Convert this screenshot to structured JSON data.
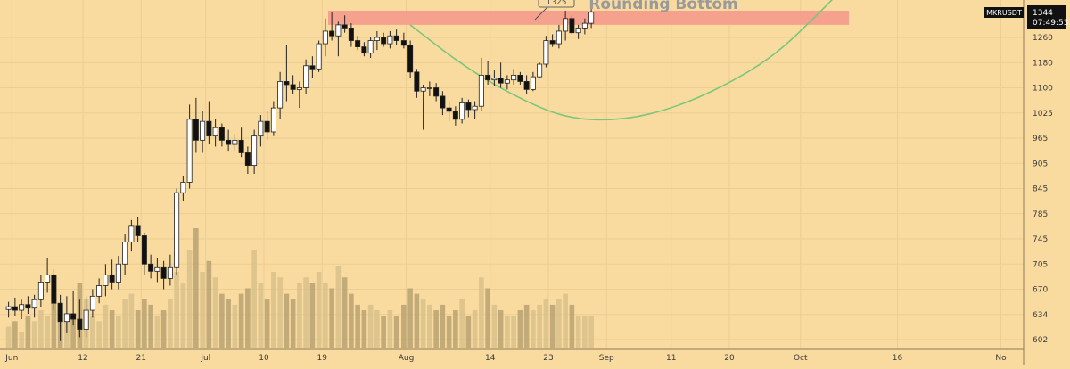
{
  "chart_data": {
    "type": "candlestick",
    "symbol": "MKRUSDT",
    "last_price": "1344",
    "countdown": "07:49:53",
    "annotation_title": "Rounding Bottom",
    "annotation_callout": "1325",
    "resistance_zone": [
      1300,
      1345
    ],
    "y_ticks": [
      602,
      634,
      670,
      705,
      745,
      785,
      845,
      905,
      965,
      1025,
      1100,
      1180,
      1260
    ],
    "x_ticks": [
      {
        "label": "Jun",
        "day": 1
      },
      {
        "label": "12",
        "day": 12
      },
      {
        "label": "21",
        "day": 21
      },
      {
        "label": "Jul",
        "day": 31
      },
      {
        "label": "10",
        "day": 40
      },
      {
        "label": "19",
        "day": 49
      },
      {
        "label": "Aug",
        "day": 62
      },
      {
        "label": "14",
        "day": 75
      },
      {
        "label": "23",
        "day": 84
      },
      {
        "label": "Sep",
        "day": 93
      },
      {
        "label": "11",
        "day": 103
      },
      {
        "label": "20",
        "day": 112
      },
      {
        "label": "Oct",
        "day": 123
      },
      {
        "label": "16",
        "day": 138
      },
      {
        "label": "No",
        "day": 154
      }
    ],
    "candles": [
      [
        641,
        652,
        630,
        645,
        4
      ],
      [
        645,
        658,
        632,
        640,
        5
      ],
      [
        640,
        655,
        628,
        648,
        3
      ],
      [
        648,
        660,
        635,
        643,
        6
      ],
      [
        643,
        662,
        630,
        655,
        5
      ],
      [
        655,
        690,
        645,
        680,
        7
      ],
      [
        680,
        715,
        665,
        690,
        6
      ],
      [
        690,
        698,
        640,
        650,
        10
      ],
      [
        650,
        662,
        600,
        625,
        8
      ],
      [
        625,
        660,
        610,
        635,
        5
      ],
      [
        635,
        668,
        620,
        628,
        6
      ],
      [
        628,
        655,
        605,
        615,
        12
      ],
      [
        615,
        660,
        605,
        640,
        9
      ],
      [
        640,
        670,
        630,
        660,
        6
      ],
      [
        660,
        685,
        650,
        675,
        5
      ],
      [
        675,
        705,
        660,
        690,
        8
      ],
      [
        690,
        712,
        670,
        680,
        7
      ],
      [
        680,
        718,
        670,
        705,
        6
      ],
      [
        705,
        752,
        690,
        740,
        9
      ],
      [
        740,
        775,
        725,
        765,
        10
      ],
      [
        765,
        780,
        740,
        750,
        7
      ],
      [
        750,
        755,
        690,
        705,
        9
      ],
      [
        705,
        720,
        685,
        695,
        8
      ],
      [
        695,
        715,
        680,
        700,
        6
      ],
      [
        700,
        710,
        670,
        685,
        7
      ],
      [
        685,
        720,
        675,
        700,
        9
      ],
      [
        700,
        845,
        690,
        835,
        14
      ],
      [
        835,
        875,
        815,
        860,
        12
      ],
      [
        860,
        1050,
        845,
        1010,
        18
      ],
      [
        1010,
        1070,
        930,
        960,
        22
      ],
      [
        960,
        1030,
        930,
        1005,
        14
      ],
      [
        1005,
        1060,
        950,
        970,
        16
      ],
      [
        970,
        1010,
        945,
        990,
        13
      ],
      [
        990,
        1000,
        945,
        960,
        10
      ],
      [
        960,
        985,
        935,
        950,
        9
      ],
      [
        950,
        975,
        935,
        960,
        8
      ],
      [
        960,
        990,
        920,
        930,
        10
      ],
      [
        930,
        945,
        880,
        900,
        11
      ],
      [
        900,
        985,
        880,
        970,
        18
      ],
      [
        970,
        1020,
        945,
        1005,
        12
      ],
      [
        1005,
        1030,
        960,
        980,
        9
      ],
      [
        980,
        1060,
        970,
        1040,
        14
      ],
      [
        1040,
        1150,
        1010,
        1120,
        13
      ],
      [
        1120,
        1235,
        1060,
        1110,
        10
      ],
      [
        1110,
        1140,
        1080,
        1095,
        9
      ],
      [
        1095,
        1120,
        1040,
        1100,
        12
      ],
      [
        1100,
        1190,
        1080,
        1170,
        13
      ],
      [
        1170,
        1200,
        1130,
        1160,
        12
      ],
      [
        1160,
        1250,
        1150,
        1240,
        14
      ],
      [
        1240,
        1320,
        1200,
        1280,
        12
      ],
      [
        1280,
        1340,
        1250,
        1265,
        11
      ],
      [
        1265,
        1310,
        1200,
        1300,
        15
      ],
      [
        1300,
        1330,
        1275,
        1290,
        13
      ],
      [
        1290,
        1305,
        1230,
        1250,
        10
      ],
      [
        1250,
        1265,
        1220,
        1230,
        8
      ],
      [
        1230,
        1245,
        1200,
        1210,
        7
      ],
      [
        1210,
        1260,
        1195,
        1250,
        8
      ],
      [
        1250,
        1280,
        1220,
        1260,
        7
      ],
      [
        1260,
        1275,
        1230,
        1240,
        6
      ],
      [
        1240,
        1280,
        1225,
        1265,
        7
      ],
      [
        1265,
        1285,
        1235,
        1250,
        6
      ],
      [
        1250,
        1275,
        1225,
        1235,
        8
      ],
      [
        1235,
        1250,
        1130,
        1150,
        11
      ],
      [
        1150,
        1160,
        1070,
        1090,
        10
      ],
      [
        1090,
        1110,
        985,
        1100,
        9
      ],
      [
        1100,
        1120,
        1075,
        1100,
        8
      ],
      [
        1100,
        1115,
        1060,
        1075,
        7
      ],
      [
        1075,
        1090,
        1020,
        1040,
        8
      ],
      [
        1040,
        1060,
        1005,
        1030,
        6
      ],
      [
        1030,
        1045,
        995,
        1010,
        7
      ],
      [
        1010,
        1070,
        1000,
        1055,
        9
      ],
      [
        1055,
        1065,
        1015,
        1035,
        6
      ],
      [
        1035,
        1060,
        1010,
        1045,
        7
      ],
      [
        1045,
        1195,
        1030,
        1140,
        13
      ],
      [
        1140,
        1185,
        1110,
        1125,
        11
      ],
      [
        1125,
        1155,
        1105,
        1130,
        8
      ],
      [
        1130,
        1180,
        1100,
        1115,
        7
      ],
      [
        1115,
        1140,
        1095,
        1125,
        6
      ],
      [
        1125,
        1160,
        1110,
        1140,
        6
      ],
      [
        1140,
        1150,
        1110,
        1120,
        7
      ],
      [
        1120,
        1140,
        1080,
        1095,
        8
      ],
      [
        1095,
        1150,
        1090,
        1135,
        7
      ],
      [
        1135,
        1180,
        1130,
        1175,
        8
      ],
      [
        1175,
        1265,
        1165,
        1250,
        9
      ],
      [
        1250,
        1270,
        1230,
        1240,
        8
      ],
      [
        1240,
        1300,
        1225,
        1280,
        9
      ],
      [
        1280,
        1345,
        1250,
        1320,
        10
      ],
      [
        1320,
        1330,
        1270,
        1275,
        8
      ],
      [
        1275,
        1300,
        1255,
        1290,
        6
      ],
      [
        1290,
        1320,
        1270,
        1305,
        6
      ],
      [
        1305,
        1350,
        1290,
        1340,
        6
      ]
    ],
    "volume_max": 22,
    "rounding_curve": [
      [
        0,
        1300
      ],
      [
        16,
        1160
      ],
      [
        32,
        1060
      ],
      [
        45,
        1010
      ],
      [
        60,
        1008
      ],
      [
        74,
        1040
      ],
      [
        88,
        1105
      ],
      [
        102,
        1200
      ],
      [
        114,
        1330
      ],
      [
        120,
        1400
      ]
    ]
  }
}
